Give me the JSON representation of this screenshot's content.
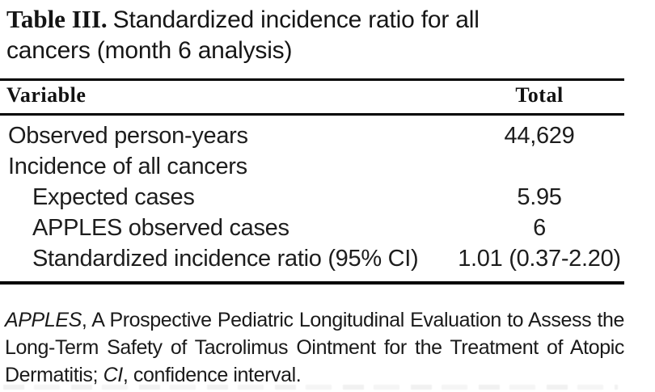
{
  "table": {
    "title_label": "Table III.",
    "title_text": "Standardized incidence ratio for all cancers (month 6 analysis)",
    "columns": {
      "variable": "Variable",
      "total": "Total"
    },
    "rows": [
      {
        "label": "Observed person-years",
        "value": "44,629"
      },
      {
        "label": "Incidence of all cancers",
        "value": ""
      },
      {
        "label": "Expected cases",
        "value": "5.95"
      },
      {
        "label": "APPLES observed cases",
        "value": "6"
      },
      {
        "label": "Standardized incidence ratio (95% CI)",
        "value": "1.01 (0.37-2.20)"
      }
    ],
    "footnote": {
      "abbrev1": "APPLES",
      "text1": ", A Prospective Pediatric Longitudinal Evaluation to Assess the Long-Term Safety of Tacrolimus Ointment for the Treatment of Atopic Dermatitis; ",
      "abbrev2": "CI",
      "text2": ", confidence interval."
    }
  },
  "colors": {
    "text": "#1d1d1d",
    "rule": "#000000",
    "background": "#ffffff"
  }
}
